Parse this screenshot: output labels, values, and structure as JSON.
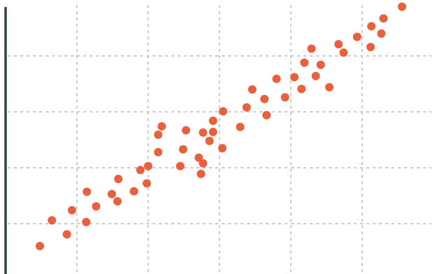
{
  "colors": {
    "background": "#ffffff",
    "point": "#e8613c",
    "grid": "#c8c8c8",
    "axis": "#2e4746"
  },
  "chart_data": {
    "type": "scatter",
    "title": "",
    "xlabel": "",
    "ylabel": "",
    "xlim": [
      0,
      6
    ],
    "ylim": [
      0,
      4.9
    ],
    "grid": true,
    "grid_style": "dotted",
    "x_gridlines": [
      1,
      2,
      3,
      4,
      5
    ],
    "y_gridlines": [
      0.9,
      1.9,
      2.9,
      3.9
    ],
    "legend": "none",
    "tick_labels_visible": false,
    "series": [
      {
        "color": "#e8613c",
        "x": [
          0.48,
          0.65,
          0.86,
          0.93,
          1.13,
          1.14,
          1.27,
          1.49,
          1.57,
          1.58,
          1.8,
          1.89,
          1.98,
          2.0,
          2.14,
          2.14,
          2.19,
          2.45,
          2.49,
          2.53,
          2.71,
          2.74,
          2.77,
          2.77,
          2.86,
          2.91,
          2.91,
          3.04,
          3.05,
          3.29,
          3.38,
          3.46,
          3.63,
          3.66,
          3.8,
          3.92,
          4.05,
          4.15,
          4.19,
          4.29,
          4.35,
          4.42,
          4.54,
          4.67,
          4.74,
          4.93,
          5.12,
          5.13,
          5.27,
          5.3,
          5.56
        ],
        "y": [
          0.5,
          0.96,
          0.71,
          1.14,
          0.93,
          1.47,
          1.21,
          1.43,
          1.3,
          1.7,
          1.48,
          1.86,
          1.62,
          1.93,
          2.18,
          2.49,
          2.64,
          1.93,
          2.23,
          2.57,
          2.08,
          1.79,
          1.98,
          2.53,
          2.38,
          2.74,
          2.54,
          2.25,
          2.91,
          2.63,
          2.98,
          3.3,
          3.13,
          2.84,
          3.49,
          3.16,
          3.52,
          3.31,
          3.78,
          4.03,
          3.54,
          3.74,
          3.34,
          4.11,
          3.96,
          4.24,
          4.06,
          4.43,
          4.3,
          4.57,
          4.78
        ]
      }
    ]
  }
}
